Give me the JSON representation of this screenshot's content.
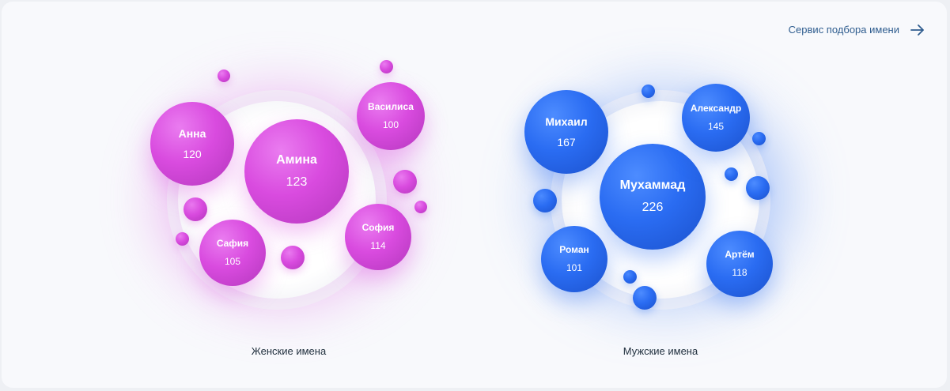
{
  "header": {
    "service_link_label": "Сервис подбора имени"
  },
  "female": {
    "caption": "Женские имена",
    "names": [
      {
        "name": "Анна",
        "count": "120"
      },
      {
        "name": "Амина",
        "count": "123"
      },
      {
        "name": "Василиса",
        "count": "100"
      },
      {
        "name": "София",
        "count": "114"
      },
      {
        "name": "Сафия",
        "count": "105"
      }
    ]
  },
  "male": {
    "caption": "Мужские имена",
    "names": [
      {
        "name": "Михаил",
        "count": "167"
      },
      {
        "name": "Мухаммад",
        "count": "226"
      },
      {
        "name": "Александр",
        "count": "145"
      },
      {
        "name": "Роман",
        "count": "101"
      },
      {
        "name": "Артём",
        "count": "118"
      }
    ]
  },
  "colors": {
    "female_accent": "#d94bdf",
    "male_accent": "#2a6cf2",
    "link": "#2f5d8f"
  },
  "icons": {
    "service_link_icon": "arrow-right-icon"
  }
}
